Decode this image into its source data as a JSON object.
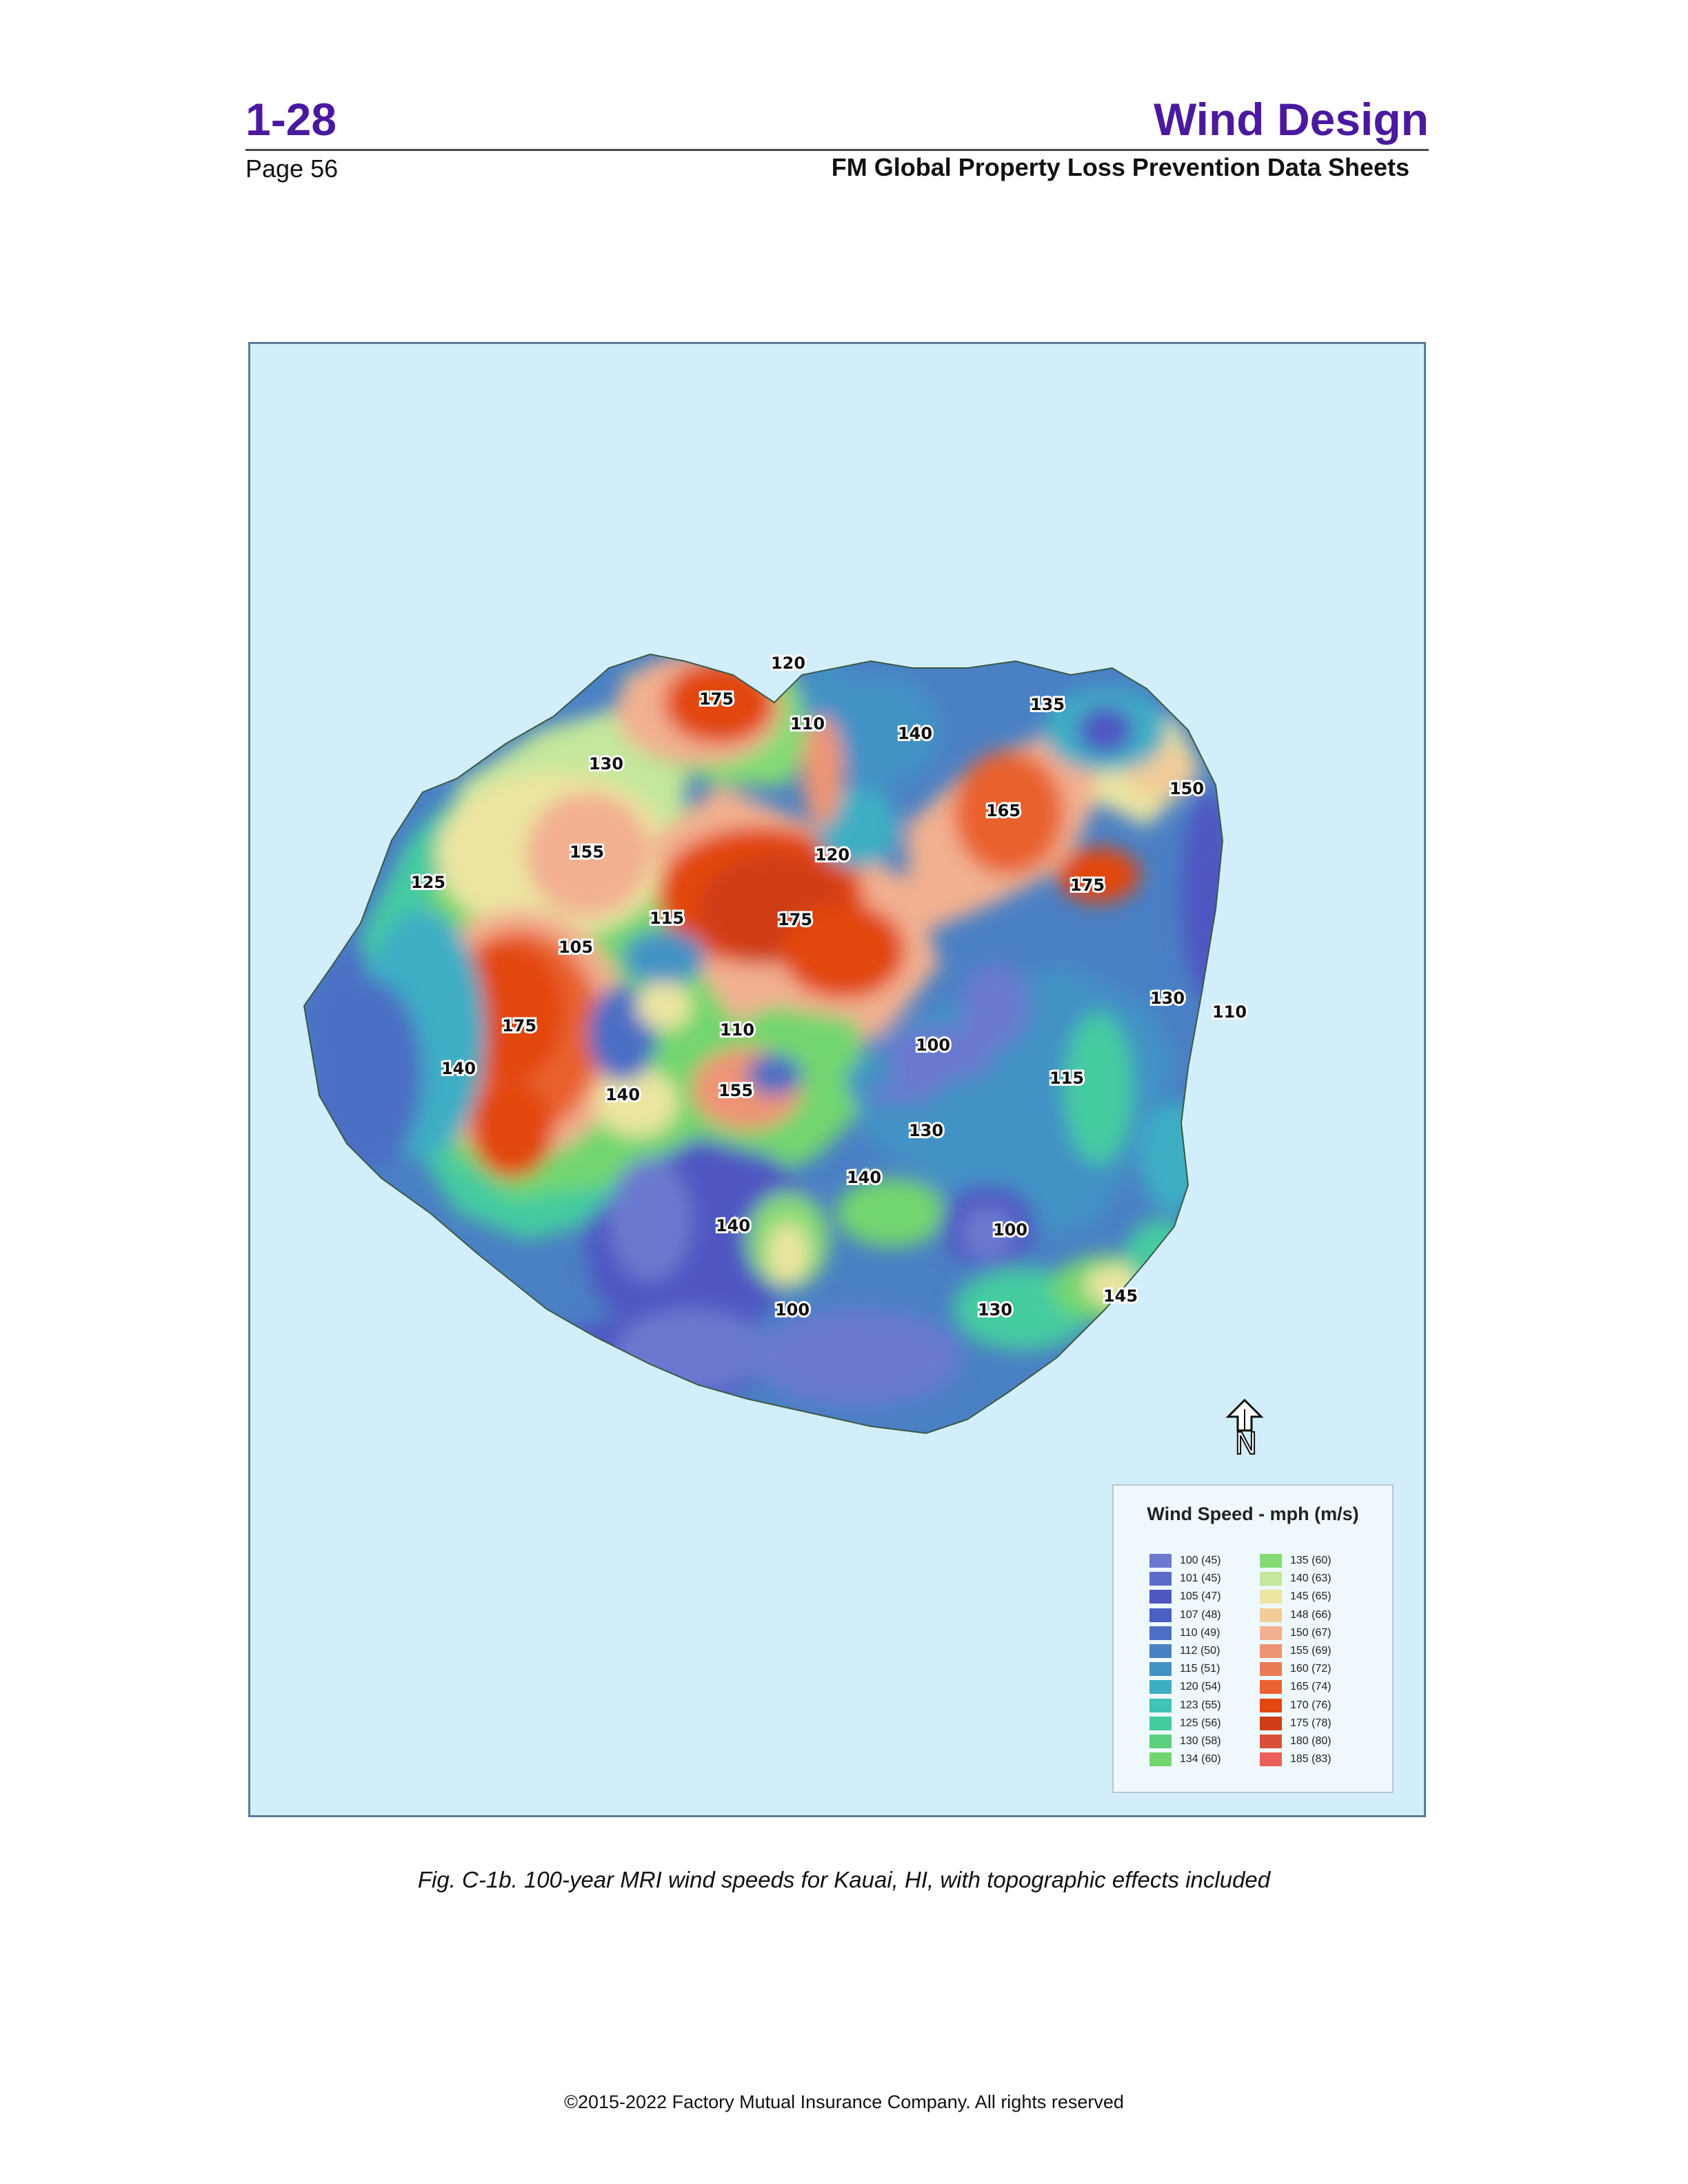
{
  "header": {
    "doc_number": "1-28",
    "doc_title": "Wind Design",
    "page_number": "Page 56",
    "series_name": "FM Global Property Loss Prevention Data Sheets"
  },
  "map": {
    "water_color": "#d2eefb",
    "north_label": "N",
    "contour_labels": [
      "120",
      "175",
      "110",
      "140",
      "135",
      "130",
      "150",
      "165",
      "155",
      "120",
      "125",
      "175",
      "115",
      "175",
      "105",
      "175",
      "130",
      "110",
      "110",
      "100",
      "140",
      "115",
      "140",
      "155",
      "130",
      "140",
      "140",
      "100",
      "145",
      "100",
      "130"
    ],
    "legend": {
      "title": "Wind Speed - mph (m/s)",
      "items": [
        {
          "label": "100 (45)",
          "color": "#6b79cf"
        },
        {
          "label": "101 (45)",
          "color": "#5d6ccb"
        },
        {
          "label": "105 (47)",
          "color": "#4f57c2"
        },
        {
          "label": "107 (48)",
          "color": "#4a5fc4"
        },
        {
          "label": "110 (49)",
          "color": "#4c6ec5"
        },
        {
          "label": "112 (50)",
          "color": "#4a80c4"
        },
        {
          "label": "115 (51)",
          "color": "#4392c5"
        },
        {
          "label": "120 (54)",
          "color": "#3caec4"
        },
        {
          "label": "123 (55)",
          "color": "#3fc4b6"
        },
        {
          "label": "125 (56)",
          "color": "#44cba0"
        },
        {
          "label": "130 (58)",
          "color": "#5bd07f"
        },
        {
          "label": "134 (60)",
          "color": "#72d670"
        },
        {
          "label": "135 (60)",
          "color": "#86da76"
        },
        {
          "label": "140 (63)",
          "color": "#c3e79b"
        },
        {
          "label": "145 (65)",
          "color": "#ebe5a1"
        },
        {
          "label": "148 (66)",
          "color": "#f1cc98"
        },
        {
          "label": "150 (67)",
          "color": "#f2b090"
        },
        {
          "label": "155 (69)",
          "color": "#ee9474"
        },
        {
          "label": "160 (72)",
          "color": "#ea7b55"
        },
        {
          "label": "165 (74)",
          "color": "#e9622f"
        },
        {
          "label": "170 (76)",
          "color": "#e2470f"
        },
        {
          "label": "175 (78)",
          "color": "#cf3e18"
        },
        {
          "label": "180 (80)",
          "color": "#d9503a"
        },
        {
          "label": "185 (83)",
          "color": "#ec5f5a"
        }
      ]
    }
  },
  "caption": "Fig. C-1b. 100-year MRI wind speeds for Kauai, HI, with topographic effects included",
  "footer": "©2015-2022 Factory Mutual Insurance Company. All rights reserved"
}
